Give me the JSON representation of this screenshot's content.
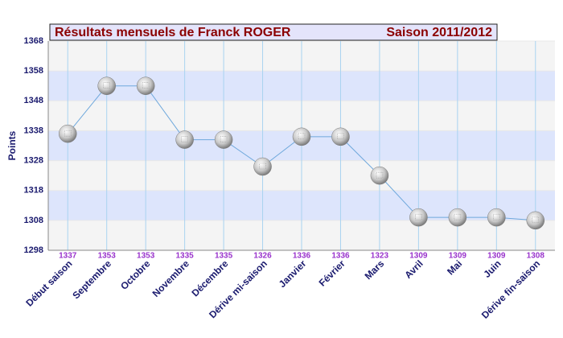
{
  "chart_data": {
    "type": "line",
    "title": "Résultats mensuels de  Franck ROGER",
    "subtitle": "Saison 2011/2012",
    "y_label": "Points",
    "categories": [
      "Début saison",
      "Septembre",
      "Octobre",
      "Novembre",
      "Décembre",
      "Dérive mi-saison",
      "Janvier",
      "Février",
      "Mars",
      "Avril",
      "Mai",
      "Juin",
      "Dérive fin-saison"
    ],
    "values": [
      1337,
      1353,
      1353,
      1335,
      1335,
      1326,
      1336,
      1336,
      1323,
      1309,
      1309,
      1309,
      1308
    ],
    "color": "#6fa8dc",
    "ylim": [
      1298,
      1368
    ],
    "yticks": [
      1298,
      1308,
      1318,
      1328,
      1338,
      1348,
      1358,
      1368
    ],
    "grid": true
  }
}
